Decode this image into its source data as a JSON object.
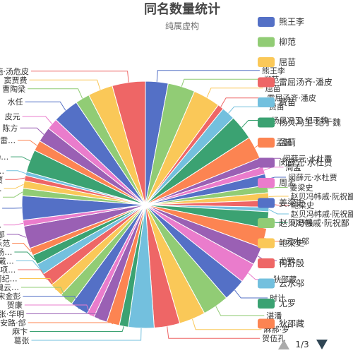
{
  "chart_data": {
    "type": "pie",
    "title": "同名数量统计",
    "subtitle": "纯属虚构",
    "colors": [
      "#5470c6",
      "#91cc75",
      "#fac858",
      "#ee6666",
      "#73c0de",
      "#3ba272",
      "#fc8452",
      "#9a60b4",
      "#ea7ccc"
    ],
    "slices": [
      {
        "name": "熊王李",
        "value": 3.0
      },
      {
        "name": "柳范",
        "value": 3.6
      },
      {
        "name": "屈苗",
        "value": 3.6
      },
      {
        "name": "雷屈汤齐·潘皮",
        "value": 0.8
      },
      {
        "name": "费苗",
        "value": 1.8
      },
      {
        "name": "杨贝冯卫·纪于魏",
        "value": 3.3
      },
      {
        "name": "孟蓟",
        "value": 3.0
      },
      {
        "name": "闵薛元·水杜贾",
        "value": 1.2
      },
      {
        "name": "周孟",
        "value": 1.0
      },
      {
        "name": "闵薛元·水杜贾",
        "value": 1.5
      },
      {
        "name": "姜梁史",
        "value": 1.0
      },
      {
        "name": "赵贝冯帏戚·阮祝鄙",
        "value": 1.0
      },
      {
        "name": "鲍梁史",
        "value": 0.9
      },
      {
        "name": "赵贝冯帏戚·阮祝鄙",
        "value": 0.6
      },
      {
        "name": "何舒殷",
        "value": 2.2
      },
      {
        "name": "云水邬",
        "value": 2.6
      },
      {
        "name": "尤罗",
        "value": 2.4
      },
      {
        "name": "狄邵藏",
        "value": 2.7
      },
      {
        "name": "时计",
        "value": 3.0
      },
      {
        "name": "湛潘",
        "value": 3.5
      },
      {
        "name": "麻郝·罗",
        "value": 3.5
      },
      {
        "name": "贺伍孔",
        "value": 3.4
      },
      {
        "name": "葛张",
        "value": 3.4
      },
      {
        "name": "麻卞",
        "value": 1.2
      },
      {
        "name": "安路·郃",
        "value": 1.7
      },
      {
        "name": "伏张·华明",
        "value": 1.8
      },
      {
        "name": "贺康",
        "value": 1.0
      },
      {
        "name": "宋金彭",
        "value": 2.4
      },
      {
        "name": "葛魏云…",
        "value": 1.8
      },
      {
        "name": "何纪…",
        "value": 1.8
      },
      {
        "name": "苏项…",
        "value": 1.8
      },
      {
        "name": "章戴…",
        "value": 1.5
      },
      {
        "name": "汤…",
        "value": 1.3
      },
      {
        "name": "乐范",
        "value": 1.0
      },
      {
        "name": "滕邬",
        "value": 3.0
      },
      {
        "name": "吴…",
        "value": 0.8
      },
      {
        "name": "张…",
        "value": 3.2
      },
      {
        "name": "傅…",
        "value": 1.0
      },
      {
        "name": "云…",
        "value": 1.0
      },
      {
        "name": "平贾",
        "value": 0.7
      },
      {
        "name": "藏…",
        "value": 0.5
      },
      {
        "name": "杨…",
        "value": 3.0
      },
      {
        "name": "邹雷…",
        "value": 1.4
      },
      {
        "name": "陈方",
        "value": 2.0
      },
      {
        "name": "皮元",
        "value": 1.5
      },
      {
        "name": "水任",
        "value": 3.5
      },
      {
        "name": "曹陶梁",
        "value": 1.9
      },
      {
        "name": "窦贾费",
        "value": 3.3
      },
      {
        "name": "曹成邵岑施·汤危皮",
        "value": 4.4
      }
    ],
    "legend": {
      "placement": "right",
      "items": [
        "熊王李",
        "柳范",
        "屈苗",
        "雷屈汤齐·潘皮",
        "费苗",
        "杨贝冯卫·纪于魏",
        "孟蓟",
        "闵薛元·水杜贾",
        "周孟",
        "姜梁史",
        "赵贝冯帏戚·阮祝鄙",
        "鲍梁史",
        "何舒殷",
        "云水邬",
        "尤罗",
        "狄邵藏"
      ],
      "page": "1/3"
    }
  }
}
